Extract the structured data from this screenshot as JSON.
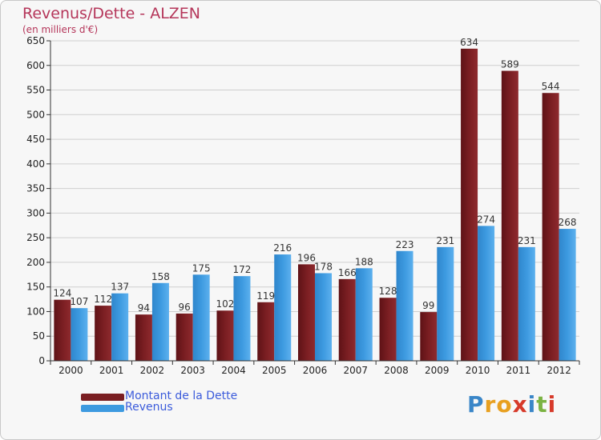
{
  "header": {
    "title": "Revenus/Dette - ALZEN",
    "subtitle": "(en milliers d'€)"
  },
  "legend": {
    "debt_label": "Montant de la Dette",
    "revenue_label": "Revenus"
  },
  "logo": {
    "text": "Proxiti",
    "letters": [
      "P",
      "r",
      "o",
      "x",
      "i",
      "t",
      "i"
    ],
    "letter_colors": [
      "#3a86c8",
      "#e8a020",
      "#e8a020",
      "#d73a2a",
      "#3a86c8",
      "#7bb342",
      "#d73a2a"
    ]
  },
  "colors": {
    "debt": "#7a1e22",
    "revenue": "#3d9ae0",
    "title": "#b5365a",
    "legend_text": "#3b5bdb",
    "grid": "#cfcfcf"
  },
  "chart_data": {
    "type": "bar",
    "title": "Revenus/Dette - ALZEN",
    "subtitle": "(en milliers d'€)",
    "categories": [
      "2000",
      "2001",
      "2002",
      "2003",
      "2004",
      "2005",
      "2006",
      "2007",
      "2008",
      "2009",
      "2010",
      "2011",
      "2012"
    ],
    "series": [
      {
        "name": "Montant de la Dette",
        "values": [
          124,
          112,
          94,
          96,
          102,
          119,
          196,
          166,
          128,
          99,
          634,
          589,
          544
        ]
      },
      {
        "name": "Revenus",
        "values": [
          107,
          137,
          158,
          175,
          172,
          216,
          178,
          188,
          223,
          231,
          274,
          231,
          268
        ]
      }
    ],
    "ylim": [
      0,
      650
    ],
    "yticks": [
      0,
      50,
      100,
      150,
      200,
      250,
      300,
      350,
      400,
      450,
      500,
      550,
      600,
      650
    ],
    "grid": true,
    "legend_position": "bottom-left"
  }
}
